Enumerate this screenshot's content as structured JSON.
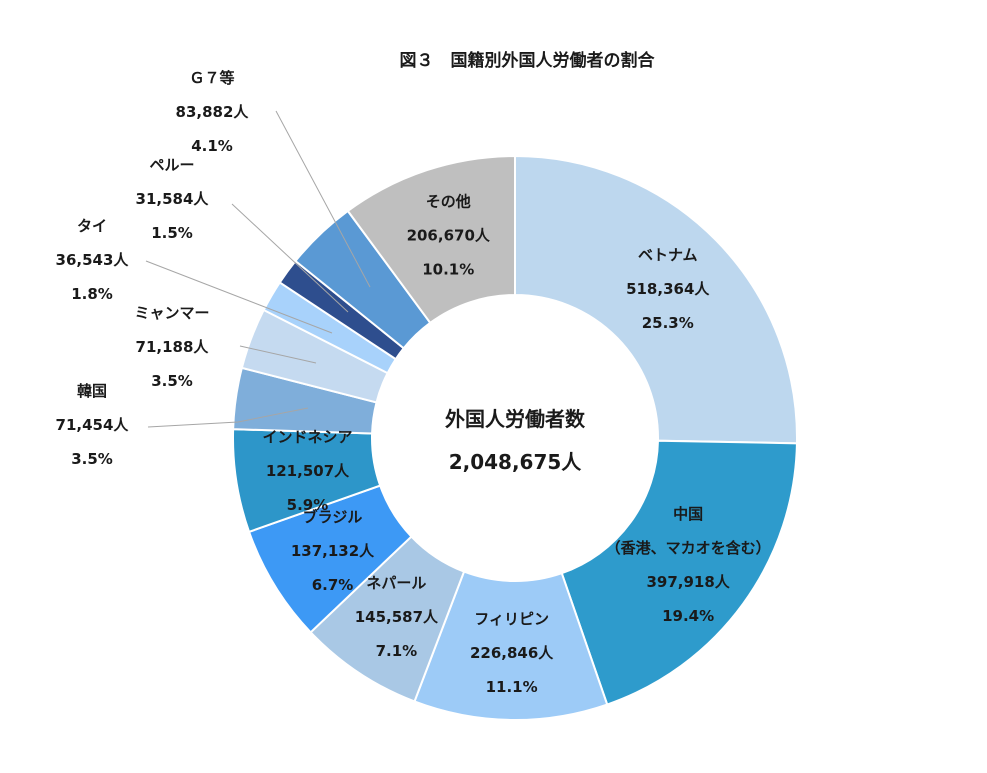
{
  "chart_data": {
    "type": "pie",
    "variant": "donut",
    "title": "図３　国籍別外国人労働者の割合",
    "center_label": "外国人労働者数",
    "center_value": "2,048,675人",
    "slices": [
      {
        "label": [
          "ベトナム"
        ],
        "count": "518,364人",
        "percent": "25.3%",
        "value": 25.3,
        "color": "#BDD7EE",
        "label_mode": "inside"
      },
      {
        "label": [
          "中国",
          "（香港、マカオを含む）"
        ],
        "count": "397,918人",
        "percent": "19.4%",
        "value": 19.4,
        "color": "#2E9BCC",
        "label_mode": "inside"
      },
      {
        "label": [
          "フィリピン"
        ],
        "count": "226,846人",
        "percent": "11.1%",
        "value": 11.1,
        "color": "#9DCBF7",
        "label_mode": "inside"
      },
      {
        "label": [
          "ネパール"
        ],
        "count": "145,587人",
        "percent": "7.1%",
        "value": 7.1,
        "color": "#A9C8E5",
        "label_mode": "inside"
      },
      {
        "label": [
          "ブラジル"
        ],
        "count": "137,132人",
        "percent": "6.7%",
        "value": 6.7,
        "color": "#3D99F5",
        "label_mode": "inside"
      },
      {
        "label": [
          "インドネシア"
        ],
        "count": "121,507人",
        "percent": "5.9%",
        "value": 5.9,
        "color": "#2D96C9",
        "label_mode": "inside"
      },
      {
        "label": [
          "韓国"
        ],
        "count": "71,454人",
        "percent": "3.5%",
        "value": 3.5,
        "color": "#7FAEDA",
        "label_mode": "outside"
      },
      {
        "label": [
          "ミャンマー"
        ],
        "count": "71,188人",
        "percent": "3.5%",
        "value": 3.5,
        "color": "#C5DAF0",
        "label_mode": "outside"
      },
      {
        "label": [
          "タイ"
        ],
        "count": "36,543人",
        "percent": "1.8%",
        "value": 1.8,
        "color": "#A8D2FB",
        "label_mode": "outside"
      },
      {
        "label": [
          "ペルー"
        ],
        "count": "31,584人",
        "percent": "1.5%",
        "value": 1.5,
        "color": "#2E4E8E",
        "label_mode": "outside"
      },
      {
        "label": [
          "Ｇ７等"
        ],
        "count": "83,882人",
        "percent": "4.1%",
        "value": 4.1,
        "color": "#5A99D4",
        "label_mode": "outside"
      },
      {
        "label": [
          "その他"
        ],
        "count": "206,670人",
        "percent": "10.1%",
        "value": 10.1,
        "color": "#BFBFBF",
        "label_mode": "inside"
      }
    ]
  }
}
